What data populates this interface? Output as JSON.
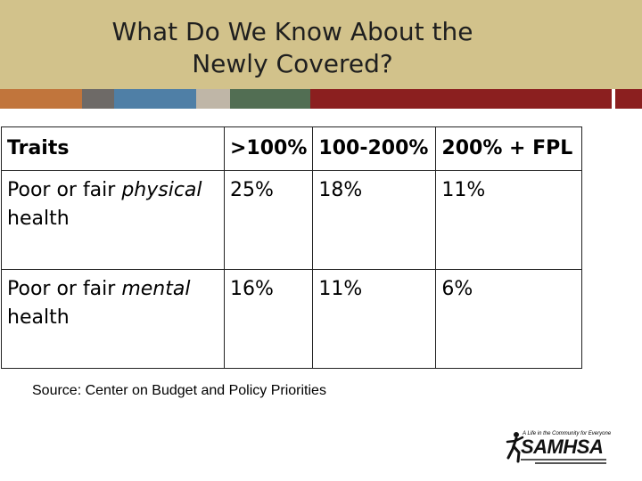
{
  "slide": {
    "title_line1": "What Do We Know About the",
    "title_line2": "Newly Covered?",
    "header_color": "#d2c28b",
    "stripe_colors": [
      "#c1753c",
      "#6e6a67",
      "#4f7fa6",
      "#5ea7d2",
      "#bfb6a7",
      "#526e53",
      "#8b1f1f"
    ]
  },
  "table": {
    "headers": [
      "Traits",
      ">100%",
      "100-200%",
      "200% + FPL"
    ],
    "rows": [
      {
        "trait_prefix": "Poor or fair ",
        "trait_emphasis": "physical",
        "trait_suffix": " health",
        "values": [
          "25%",
          "18%",
          "11%"
        ]
      },
      {
        "trait_prefix": "Poor or fair ",
        "trait_emphasis": "mental",
        "trait_suffix": " health",
        "values": [
          "16%",
          "11%",
          "6%"
        ]
      }
    ]
  },
  "source": "Source:  Center on Budget and Policy Priorities",
  "logo": {
    "wordmark": "SAMHSA",
    "tagline": "A Life in the Community for Everyone",
    "icon": "running-figure-icon"
  }
}
